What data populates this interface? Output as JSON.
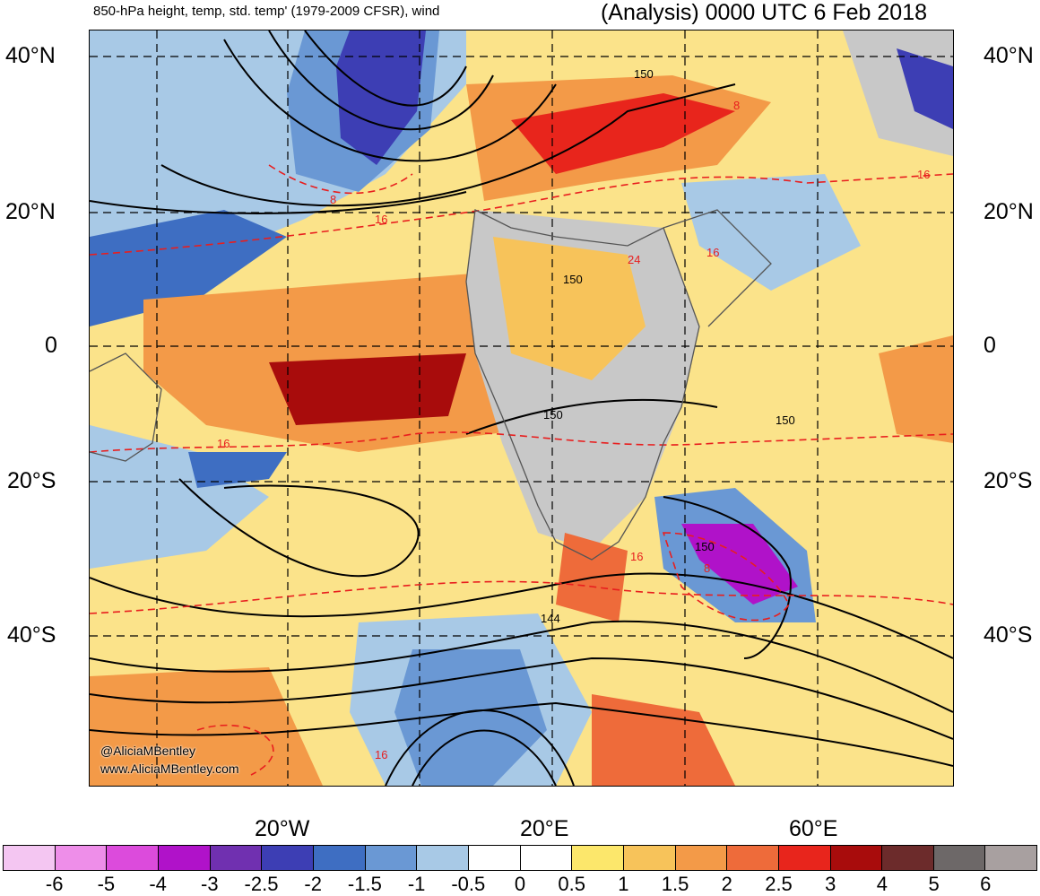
{
  "header": {
    "left_title": "850-hPa height, temp, std. temp' (1979-2009 CFSR), wind",
    "right_title": "(Analysis) 0000 UTC 6 Feb 2018"
  },
  "axes": {
    "lat_labels": [
      "40°N",
      "20°N",
      "0",
      "20°S",
      "40°S"
    ],
    "lon_labels": [
      "20°W",
      "20°E",
      "60°E"
    ]
  },
  "contour_labels": {
    "height": [
      "150",
      "150",
      "150",
      "150",
      "150",
      "144"
    ],
    "temperature": [
      "16",
      "16",
      "24",
      "16",
      "8",
      "16",
      "8",
      "8",
      "16",
      "16"
    ]
  },
  "watermark": {
    "handle": "@AliciaMBentley",
    "url": "www.AliciaMBentley.com"
  },
  "colorbar": {
    "labels": [
      "-6",
      "-5",
      "-4",
      "-3",
      "-2.5",
      "-2",
      "-1.5",
      "-1",
      "-0.5",
      "0",
      "0.5",
      "1",
      "1.5",
      "2",
      "2.5",
      "3",
      "4",
      "5",
      "6"
    ],
    "colors": [
      "#f4c6f2",
      "#ee8ee9",
      "#dc4bdc",
      "#b012c9",
      "#7030b0",
      "#3d3eb4",
      "#3e6ec2",
      "#6a98d4",
      "#a8c9e6",
      "#ffffff",
      "#ffffff",
      "#fce76b",
      "#f7c35a",
      "#f39a48",
      "#ee6b3a",
      "#e8251c",
      "#a80c0c",
      "#6c2b2b",
      "#6d6868",
      "#a8a0a0"
    ]
  }
}
